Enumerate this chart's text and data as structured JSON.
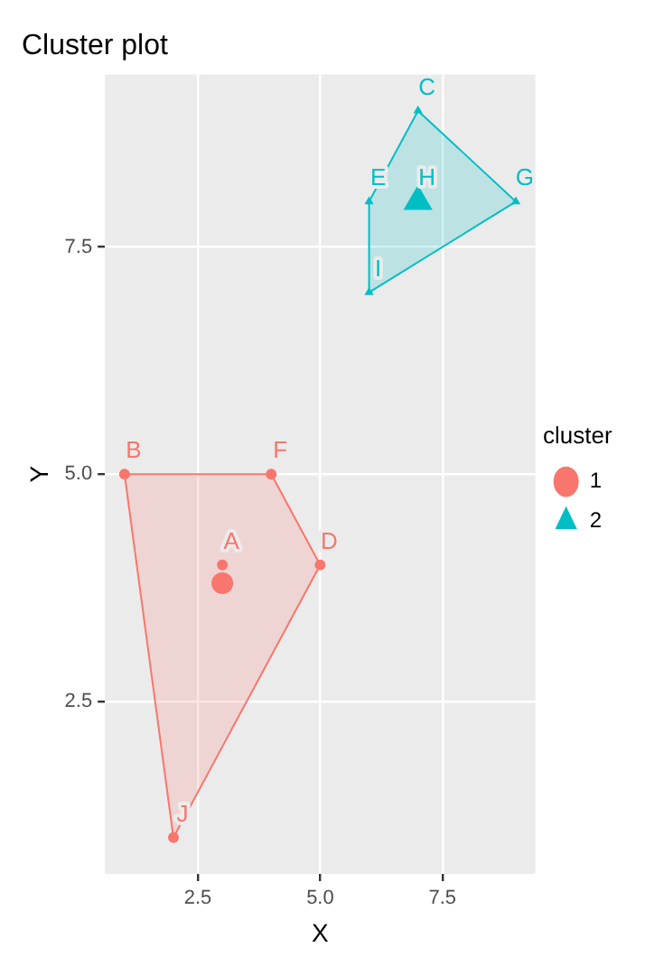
{
  "chart_data": {
    "type": "scatter",
    "title": "Cluster plot",
    "xlabel": "X",
    "ylabel": "Y",
    "legend_title": "cluster",
    "legend": "right",
    "grid": true,
    "xlim": [
      0.6,
      9.4
    ],
    "xticks": [
      {
        "value": 2.5,
        "label": "2.5"
      },
      {
        "value": 5,
        "label": "5.0"
      },
      {
        "value": 7.5,
        "label": "7.5"
      }
    ],
    "ylim": [
      0.6,
      9.4
    ],
    "yticks": [
      {
        "value": 2.5,
        "label": "2.5"
      },
      {
        "value": 5,
        "label": "5.0"
      },
      {
        "value": 7.5,
        "label": "7.5"
      }
    ],
    "series": [
      {
        "name": "1",
        "type": "scatter",
        "color": "#f8766d",
        "marker": "circle",
        "x": [
          3,
          1,
          5,
          4,
          2,
          3
        ],
        "values": [
          4,
          5,
          4,
          5,
          1,
          3.8
        ],
        "sizes": [
          0.25,
          0.25,
          0.25,
          0.25,
          0.25,
          1
        ]
      },
      {
        "name": "2",
        "type": "scatter",
        "color": "#00bfc4",
        "marker": "triangle",
        "x": [
          7,
          6,
          9,
          6,
          7
        ],
        "values": [
          9,
          8,
          8,
          7,
          8
        ],
        "sizes": [
          0.1,
          0.1,
          0.1,
          0.1,
          1
        ]
      },
      {
        "type": "area",
        "color": "#f8766d",
        "x": [
          1,
          4,
          5,
          2,
          1
        ],
        "values": [
          5,
          5,
          4,
          1,
          5
        ]
      },
      {
        "type": "area",
        "color": "#00bfc4",
        "x": [
          7,
          9,
          6,
          6,
          7
        ],
        "values": [
          9,
          8,
          7,
          8,
          9
        ]
      }
    ],
    "annotations": [
      {
        "text": "A",
        "x": 3,
        "y": 4
      },
      {
        "text": "B",
        "x": 1,
        "y": 5
      },
      {
        "text": "C",
        "x": 7,
        "y": 9
      },
      {
        "text": "D",
        "x": 5,
        "y": 4
      },
      {
        "text": "E",
        "x": 6,
        "y": 8
      },
      {
        "text": "F",
        "x": 4,
        "y": 5
      },
      {
        "text": "G",
        "x": 9,
        "y": 8
      },
      {
        "text": "H",
        "x": 7,
        "y": 8
      },
      {
        "text": "I",
        "x": 6,
        "y": 7
      },
      {
        "text": "J",
        "x": 2,
        "y": 1
      }
    ]
  }
}
